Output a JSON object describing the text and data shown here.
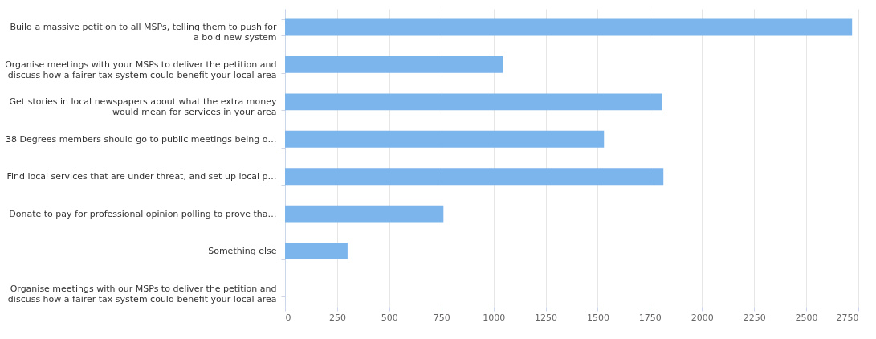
{
  "chart_data": {
    "type": "bar",
    "orientation": "horizontal",
    "categories": [
      "Build a massive petition to all MSPs, telling them to push for a bold new system",
      "Organise meetings with your MSPs to deliver the petition and discuss how a fairer tax system could benefit your local area",
      "Get stories in local newspapers about what the extra money would mean for services in your area",
      "38 Degrees members should go to public meetings being o…",
      "Find local services that are under threat, and set up local p…",
      "Donate to pay for professional opinion polling to prove tha…",
      "Something else",
      "Organise meetings with our MSPs to deliver the petition and discuss how a fairer tax system could benefit your local area"
    ],
    "values": [
      2720,
      1045,
      1810,
      1530,
      1815,
      760,
      300,
      0
    ],
    "color": "#7cb5ec",
    "xlim": [
      0,
      2750
    ],
    "xticks": [
      0,
      250,
      500,
      750,
      1000,
      1250,
      1500,
      1750,
      2000,
      2250,
      2500,
      2750
    ],
    "grid": "x"
  }
}
